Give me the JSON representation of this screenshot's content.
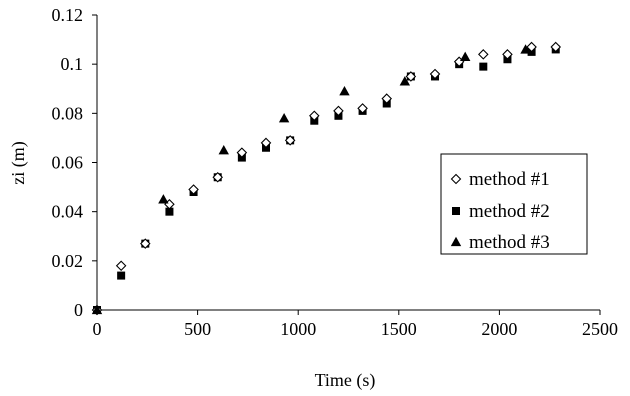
{
  "chart_data": {
    "type": "scatter",
    "xlabel": "Time (s)",
    "ylabel": "zi (m)",
    "xlim": [
      0,
      2500
    ],
    "ylim": [
      0,
      0.12
    ],
    "xticks": [
      0,
      500,
      1000,
      1500,
      2000,
      2500
    ],
    "yticks": [
      0,
      0.02,
      0.04,
      0.06,
      0.08,
      0.1,
      0.12
    ],
    "xtick_labels": [
      "0",
      "500",
      "1000",
      "1500",
      "2000",
      "2500"
    ],
    "ytick_labels": [
      "0",
      "0.02",
      "0.04",
      "0.06",
      "0.08",
      "0.1",
      "0.12"
    ],
    "grid": false,
    "legend_position": "right",
    "series": [
      {
        "name": "method #1",
        "marker": "diamond-open",
        "color": "#000000",
        "x": [
          0,
          120,
          240,
          360,
          480,
          600,
          720,
          840,
          960,
          1080,
          1200,
          1320,
          1440,
          1560,
          1680,
          1800,
          1920,
          2040,
          2160,
          2280
        ],
        "y": [
          0,
          0.018,
          0.027,
          0.043,
          0.049,
          0.054,
          0.064,
          0.068,
          0.069,
          0.079,
          0.081,
          0.082,
          0.086,
          0.095,
          0.096,
          0.101,
          0.104,
          0.104,
          0.107,
          0.107
        ]
      },
      {
        "name": "method #2",
        "marker": "square",
        "color": "#000000",
        "x": [
          0,
          120,
          240,
          360,
          480,
          600,
          720,
          840,
          960,
          1080,
          1200,
          1320,
          1440,
          1560,
          1680,
          1800,
          1920,
          2040,
          2160,
          2280
        ],
        "y": [
          0,
          0.014,
          0.027,
          0.04,
          0.048,
          0.054,
          0.062,
          0.066,
          0.069,
          0.077,
          0.079,
          0.081,
          0.084,
          0.095,
          0.095,
          0.1,
          0.099,
          0.102,
          0.105,
          0.106
        ]
      },
      {
        "name": "method #3",
        "marker": "triangle",
        "color": "#000000",
        "x": [
          0,
          330,
          630,
          930,
          1230,
          1530,
          1830,
          2130
        ],
        "y": [
          0,
          0.045,
          0.065,
          0.078,
          0.089,
          0.093,
          0.103,
          0.106
        ]
      }
    ]
  }
}
